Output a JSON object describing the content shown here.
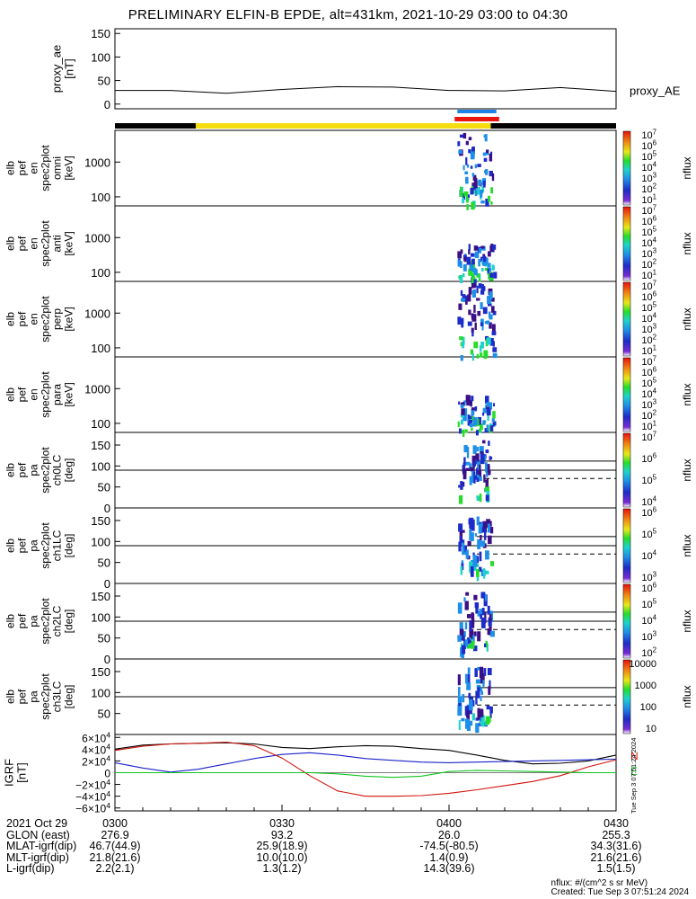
{
  "title": "PRELIMINARY ELFIN-B EPDE, alt=431km, 2021-10-29 03:00 to 04:30",
  "colors": {
    "panel_border": "#000000",
    "sunlight_bar": "#f5dd0f",
    "shadow_bar": "#000000",
    "science_zone_red": "#e8160f",
    "science_zone_blue": "#1e82e6",
    "grf_x": "#000000",
    "grf_y": "#1a23c8",
    "grf_z": "#d0140c",
    "grf_e": "#12c41e"
  },
  "chart_data": [
    {
      "type": "line",
      "name": "proxy_ae",
      "ylabel": "proxy_ae\n[nT]",
      "ylim": [
        -10,
        160
      ],
      "yticks": [
        "150",
        "100",
        "50",
        "0"
      ],
      "legend": "proxy_AE",
      "x_minutes": [
        0,
        10,
        20,
        30,
        40,
        50,
        60,
        70,
        80,
        90
      ],
      "values": [
        29,
        29,
        23,
        31,
        37,
        36,
        29,
        28,
        35,
        27
      ]
    },
    {
      "type": "heatmap",
      "name": "en_spec2plot_omni",
      "ylabel": "elb\npef\nen\nspec2plot\nomni\n[keV]",
      "yticks": [
        "1000",
        "100"
      ],
      "colorbar_label": "nflux",
      "colorbar_ticks": [
        "10^7",
        "10^6",
        "10^5",
        "10^4",
        "10^3",
        "10^2",
        "10^1"
      ]
    },
    {
      "type": "heatmap",
      "name": "en_spec2plot_anti",
      "ylabel": "elb\npef\nen\nspec2plot\nanti\n[keV]",
      "yticks": [
        "1000",
        "100"
      ],
      "colorbar_label": "nflux",
      "colorbar_ticks": [
        "10^7",
        "10^6",
        "10^5",
        "10^4",
        "10^3",
        "10^2",
        "10^1"
      ]
    },
    {
      "type": "heatmap",
      "name": "en_spec2plot_perp",
      "ylabel": "elb\npef\nen\nspec2plot\nperp\n[keV]",
      "yticks": [
        "1000",
        "100"
      ],
      "colorbar_label": "nflux",
      "colorbar_ticks": [
        "10^7",
        "10^6",
        "10^5",
        "10^4",
        "10^3",
        "10^2",
        "10^1"
      ]
    },
    {
      "type": "heatmap",
      "name": "en_spec2plot_para",
      "ylabel": "elb\npef\nen\nspec2plot\npara\n[keV]",
      "yticks": [
        "1000",
        "100"
      ],
      "colorbar_label": "nflux",
      "colorbar_ticks": [
        "10^7",
        "10^6",
        "10^5",
        "10^4",
        "10^3",
        "10^2",
        "10^1"
      ]
    },
    {
      "type": "heatmap",
      "name": "pa_spec2plot_ch0LC",
      "ylabel": "elb\npef\npa\nspec2plot\nch0LC\n[deg]",
      "yticks": [
        "150",
        "100",
        "50",
        "0"
      ],
      "colorbar_label": "nflux",
      "colorbar_ticks": [
        "10^7",
        "10^6",
        "10^5",
        "10^4"
      ]
    },
    {
      "type": "heatmap",
      "name": "pa_spec2plot_ch1LC",
      "ylabel": "elb\npef\npa\nspec2plot\nch1LC\n[deg]",
      "yticks": [
        "150",
        "100",
        "50",
        "0"
      ],
      "colorbar_label": "nflux",
      "colorbar_ticks": [
        "10^6",
        "10^5",
        "10^4",
        "10^3"
      ]
    },
    {
      "type": "heatmap",
      "name": "pa_spec2plot_ch2LC",
      "ylabel": "elb\npef\npa\nspec2plot\nch2LC\n[deg]",
      "yticks": [
        "150",
        "100",
        "50",
        "0"
      ],
      "colorbar_label": "nflux",
      "colorbar_ticks": [
        "10^6",
        "10^5",
        "10^4",
        "10^3",
        "10^2"
      ]
    },
    {
      "type": "heatmap",
      "name": "pa_spec2plot_ch3LC",
      "ylabel": "elb\npef\npa\nspec2plot\nch3LC\n[deg]",
      "yticks": [
        "150",
        "100",
        "50"
      ],
      "colorbar_label": "nflux",
      "colorbar_ticks": [
        "10000",
        "1000",
        "100",
        "10"
      ]
    },
    {
      "type": "line",
      "name": "IGRF",
      "ylabel": "IGRF\n[nT]",
      "yticks": [
        "6×10^4",
        "4×10^4",
        "2×10^4",
        "0",
        "−2×10^4",
        "−4×10^4",
        "−6×10^4"
      ],
      "ylim": [
        -65000,
        65000
      ],
      "legend_letters": [
        "N",
        "E"
      ],
      "x_minutes": [
        0,
        5,
        10,
        15,
        20,
        25,
        30,
        35,
        40,
        45,
        50,
        55,
        60,
        65,
        70,
        75,
        80,
        85,
        90
      ],
      "series": [
        {
          "values": [
            40000,
            47000,
            49000,
            50000,
            51000,
            49000,
            43000,
            41000,
            44000,
            46000,
            45000,
            41000,
            38000,
            30000,
            21000,
            15000,
            16000,
            20000,
            30000
          ]
        },
        {
          "values": [
            17000,
            8000,
            1000,
            6000,
            15000,
            24000,
            31000,
            34000,
            30000,
            24000,
            21000,
            18000,
            17000,
            18000,
            19000,
            20000,
            21000,
            22000,
            23000
          ]
        },
        {
          "values": [
            38000,
            45000,
            49000,
            50000,
            52000,
            46000,
            25000,
            -5000,
            -31000,
            -40000,
            -40000,
            -39000,
            -35000,
            -29000,
            -22000,
            -15000,
            -5000,
            10000,
            22000
          ]
        },
        {
          "values": [
            0,
            0,
            0,
            0,
            0,
            0,
            0,
            0,
            -2000,
            -6000,
            -8000,
            -6000,
            2000,
            4000,
            3000,
            2000,
            1000,
            0,
            0
          ]
        }
      ]
    }
  ],
  "time_axis": {
    "row_labels": [
      "2021 Oct 29",
      "GLON (east)",
      "MLAT-igrf(dip)",
      "MLT-igrf(dip)",
      "L-igrf(dip)"
    ],
    "columns": [
      {
        "time": "0300",
        "glon": "276.9",
        "mlat": "46.7(44.9)",
        "mlt": "21.8(21.6)",
        "l": "2.2(2.1)"
      },
      {
        "time": "0330",
        "glon": "93.2",
        "mlat": "25.9(18.9)",
        "mlt": "10.0(10.0)",
        "l": "1.3(1.2)"
      },
      {
        "time": "0400",
        "glon": "26.0",
        "mlat": "-74.5(-80.5)",
        "mlt": "1.4(0.9)",
        "l": "14.3(39.6)"
      },
      {
        "time": "0430",
        "glon": "255.3",
        "mlat": "34.3(31.6)",
        "mlt": "21.6(21.6)",
        "l": "1.5(1.5)"
      }
    ]
  },
  "side_stamp": "Tue Sep  3 07:51:24 2024",
  "credit": {
    "units": "nflux: #/(cm^2 s sr MeV)",
    "created": "Created: Tue Sep  3 07:51:24 2024"
  }
}
